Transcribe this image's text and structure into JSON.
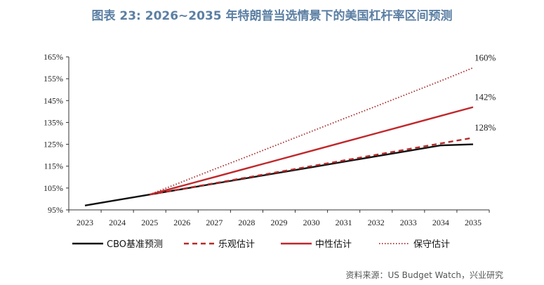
{
  "chart_data": {
    "type": "line",
    "title": "图表 23: 2026~2035 年特朗普当选情景下的美国杠杆率区间预测",
    "x": [
      "2023",
      "2024",
      "2025",
      "2026",
      "2027",
      "2028",
      "2029",
      "2030",
      "2031",
      "2032",
      "2033",
      "2034",
      "2035"
    ],
    "y_ticks": [
      "95%",
      "105%",
      "115%",
      "125%",
      "135%",
      "145%",
      "155%",
      "165%"
    ],
    "ylim": [
      95,
      165
    ],
    "grid": false,
    "legend_position": "bottom",
    "series": [
      {
        "name": "CBO基准预测",
        "color": "#111111",
        "dash": "solid",
        "values": [
          97,
          99.5,
          102,
          104.5,
          107,
          109.5,
          112,
          114.5,
          117,
          119.5,
          122,
          124.5,
          125
        ]
      },
      {
        "name": "乐观估计",
        "color": "#b52b2b",
        "dash": "dashed",
        "values": [
          null,
          null,
          102,
          104.6,
          107.2,
          109.8,
          112.4,
          115,
          117.6,
          120.2,
          122.8,
          125.4,
          128
        ]
      },
      {
        "name": "中性估计",
        "color": "#c0282b",
        "dash": "solid",
        "values": [
          null,
          null,
          102,
          106,
          110,
          114,
          118,
          122,
          126,
          130,
          134,
          138,
          142
        ]
      },
      {
        "name": "保守估计",
        "color": "#a52a2a",
        "dash": "dotted",
        "values": [
          null,
          null,
          102,
          107.8,
          113.6,
          119.3,
          125.1,
          130.9,
          136.7,
          142.4,
          148.2,
          154,
          160
        ]
      }
    ],
    "end_labels": [
      {
        "series": "保守估计",
        "text": "160%"
      },
      {
        "series": "中性估计",
        "text": "142%"
      },
      {
        "series": "乐观估计",
        "text": "128%"
      }
    ]
  },
  "source_text": "资料来源：US Budget Watch，兴业研究"
}
